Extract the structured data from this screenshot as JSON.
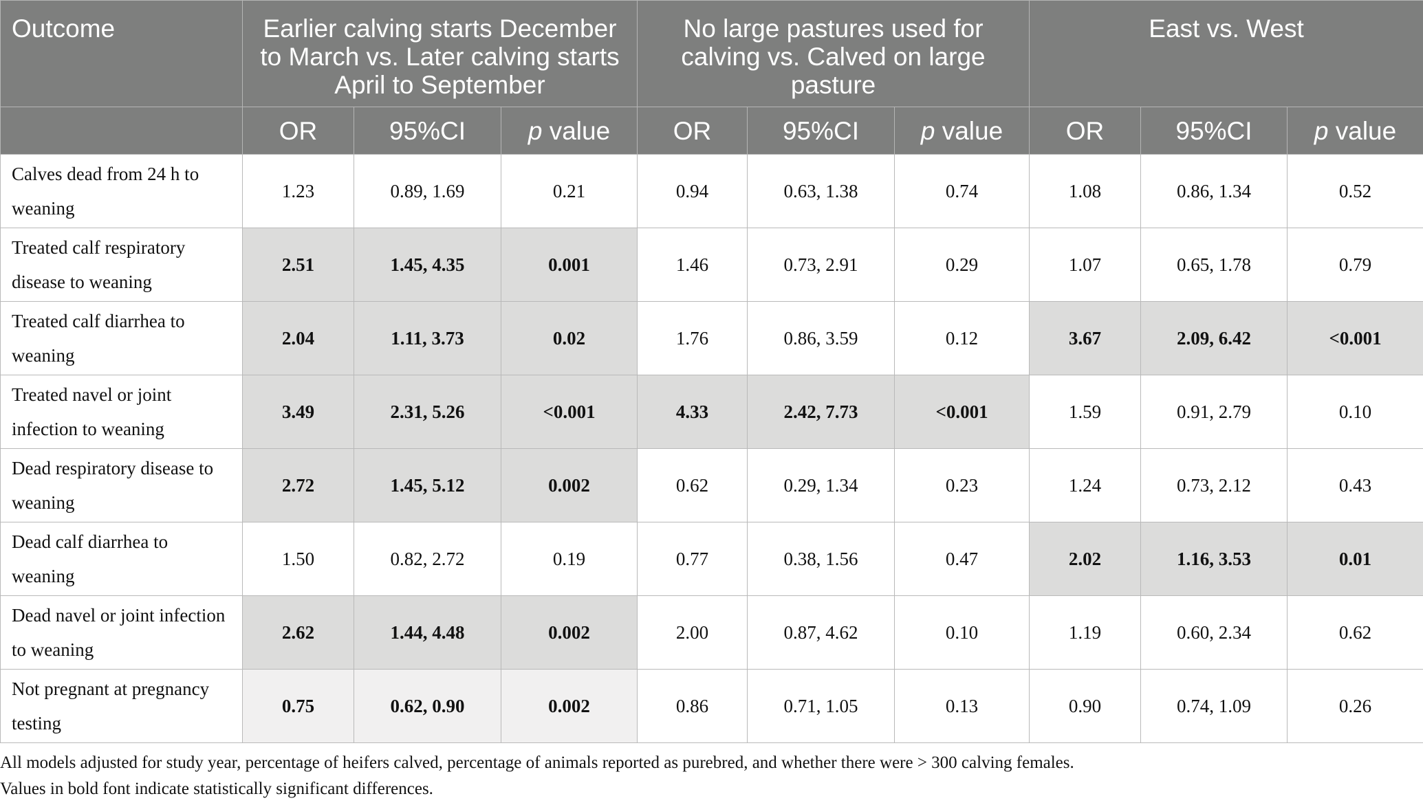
{
  "table": {
    "outcome_header": "Outcome",
    "groups": [
      "Earlier calving starts December to March vs. Later calving starts April to September",
      "No large pastures used for calving vs. Calved on large pasture",
      "East vs. West"
    ],
    "sub_or": "OR",
    "sub_ci": "95%CI",
    "sub_p_italic": "p",
    "sub_p_rest": " value",
    "rows": [
      {
        "outcome": "Calves dead from 24 h to weaning",
        "cells": [
          "1.23",
          "0.89, 1.69",
          "0.21",
          "0.94",
          "0.63, 1.38",
          "0.74",
          "1.08",
          "0.86, 1.34",
          "0.52"
        ]
      },
      {
        "outcome": "Treated calf respiratory disease to weaning",
        "cells": [
          "2.51",
          "1.45, 4.35",
          "0.001",
          "1.46",
          "0.73, 2.91",
          "0.29",
          "1.07",
          "0.65, 1.78",
          "0.79"
        ]
      },
      {
        "outcome": "Treated calf diarrhea to weaning",
        "cells": [
          "2.04",
          "1.11, 3.73",
          "0.02",
          "1.76",
          "0.86, 3.59",
          "0.12",
          "3.67",
          "2.09, 6.42",
          "<0.001"
        ]
      },
      {
        "outcome": "Treated navel or joint infection to weaning",
        "cells": [
          "3.49",
          "2.31, 5.26",
          "<0.001",
          "4.33",
          "2.42, 7.73",
          "<0.001",
          "1.59",
          "0.91, 2.79",
          "0.10"
        ]
      },
      {
        "outcome": "Dead respiratory disease to weaning",
        "cells": [
          "2.72",
          "1.45, 5.12",
          "0.002",
          "0.62",
          "0.29, 1.34",
          "0.23",
          "1.24",
          "0.73, 2.12",
          "0.43"
        ]
      },
      {
        "outcome": "Dead calf diarrhea to weaning",
        "cells": [
          "1.50",
          "0.82, 2.72",
          "0.19",
          "0.77",
          "0.38, 1.56",
          "0.47",
          "2.02",
          "1.16, 3.53",
          "0.01"
        ]
      },
      {
        "outcome": "Dead navel or joint infection to weaning",
        "cells": [
          "2.62",
          "1.44, 4.48",
          "0.002",
          "2.00",
          "0.87, 4.62",
          "0.10",
          "1.19",
          "0.60, 2.34",
          "0.62"
        ]
      },
      {
        "outcome": "Not pregnant at pregnancy testing",
        "cells": [
          "0.75",
          "0.62, 0.90",
          "0.002",
          "0.86",
          "0.71, 1.05",
          "0.13",
          "0.90",
          "0.74, 1.09",
          "0.26"
        ]
      }
    ]
  },
  "footnotes": {
    "note1": "All models adjusted for study year, percentage of heifers calved, percentage of animals reported as purebred, and whether there were > 300 calving females.",
    "note2": "Values in bold font indicate statistically significant differences."
  }
}
